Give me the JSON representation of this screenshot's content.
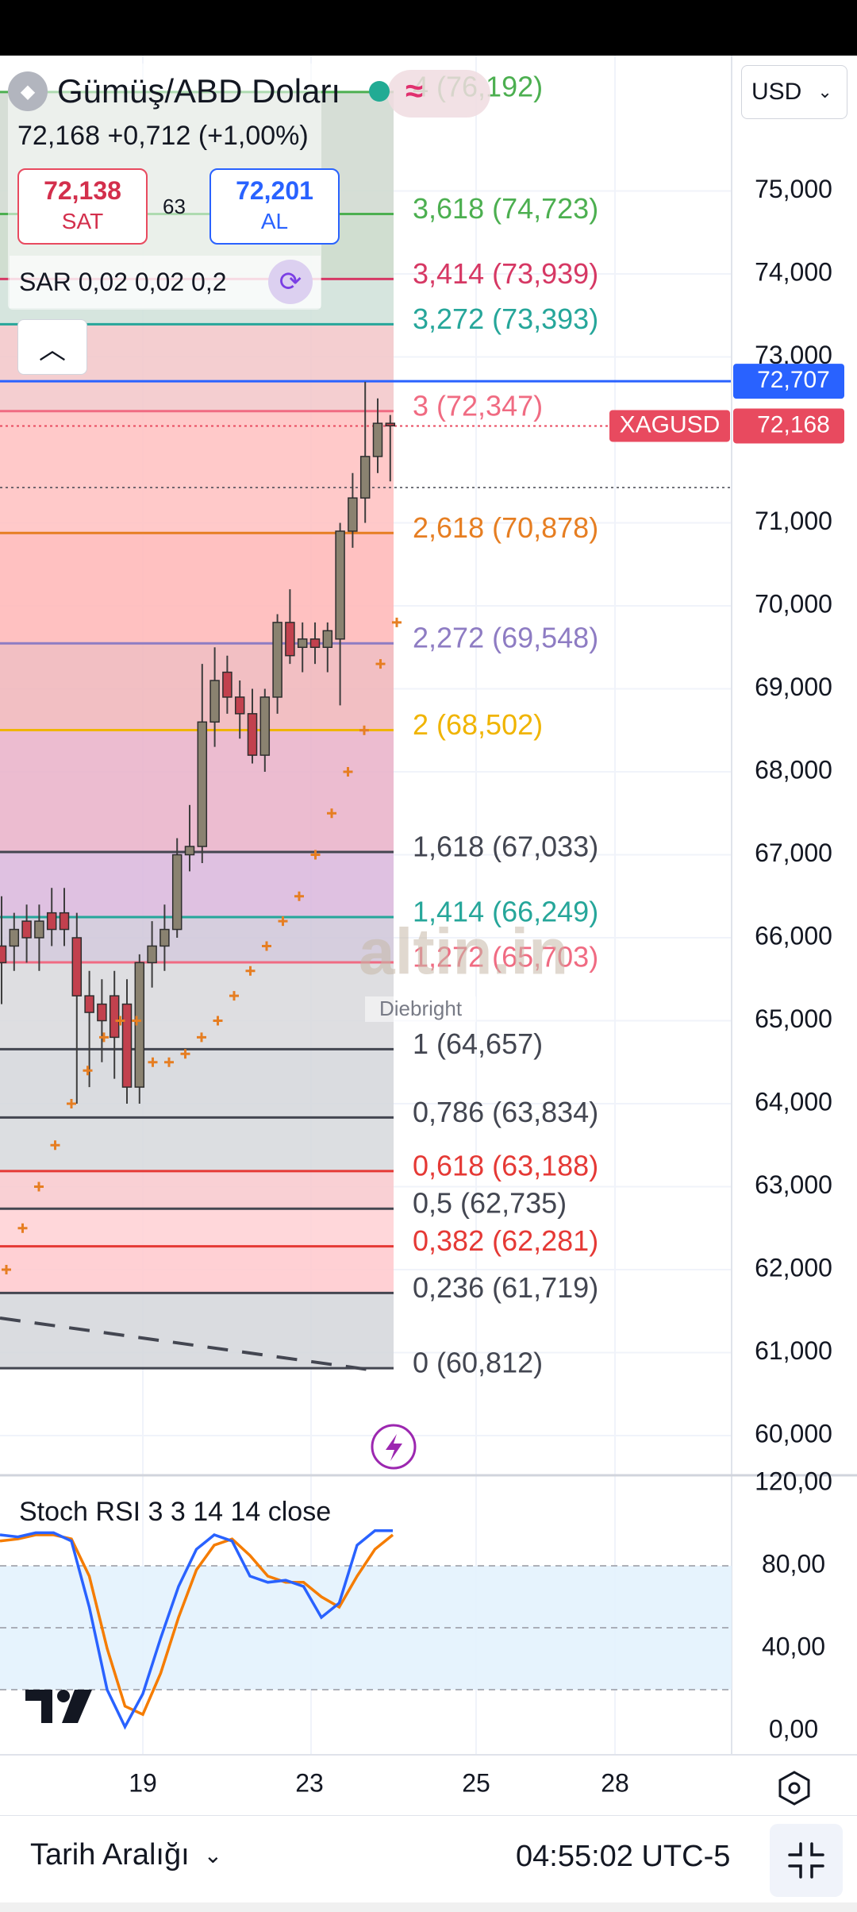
{
  "symbol": {
    "name": "Gümüş/ABD Doları",
    "price_change": "72,168  +0,712 (+1,00%)",
    "bid_value": "72,138",
    "bid_label": "SAT",
    "spread": "63",
    "ask_value": "72,201",
    "ask_label": "AL",
    "indicator": "SAR 0,02 0,02 0,2",
    "ticker_tag": "XAGUSD"
  },
  "currency_selector": {
    "label": "USD"
  },
  "fib_levels": [
    {
      "label": "4 (76,192)",
      "color": "#4caf50"
    },
    {
      "label": "3,618 (74,723)",
      "color": "#4caf50"
    },
    {
      "label": "3,414 (73,939)",
      "color": "#d63864"
    },
    {
      "label": "3,272 (73,393)",
      "color": "#26a69a"
    },
    {
      "label": "3 (72,347)",
      "color": "#f06b82"
    },
    {
      "label": "2,618 (70,878)",
      "color": "#e67e22"
    },
    {
      "label": "2,272 (69,548)",
      "color": "#8e7cc3"
    },
    {
      "label": "2 (68,502)",
      "color": "#f0b400"
    },
    {
      "label": "1,618 (67,033)",
      "color": "#434651"
    },
    {
      "label": "1,414 (66,249)",
      "color": "#26a69a"
    },
    {
      "label": "1,272 (65,703)",
      "color": "#f06b82"
    },
    {
      "label": "1 (64,657)",
      "color": "#434651"
    },
    {
      "label": "0,786 (63,834)",
      "color": "#434651"
    },
    {
      "label": "0,618 (63,188)",
      "color": "#e53935"
    },
    {
      "label": "0,5 (62,735)",
      "color": "#434651"
    },
    {
      "label": "0,382 (62,281)",
      "color": "#e53935"
    },
    {
      "label": "0,236 (61,719)",
      "color": "#434651"
    },
    {
      "label": "0 (60,812)",
      "color": "#434651"
    }
  ],
  "price_axis": {
    "ticks": [
      "75,000",
      "74,000",
      "73,000",
      "71,000",
      "70,000",
      "69,000",
      "68,000",
      "67,000",
      "66,000",
      "65,000",
      "64,000",
      "63,000",
      "62,000",
      "61,000",
      "60,000"
    ],
    "marker_blue": "72,707",
    "marker_red": "72,168"
  },
  "time_axis": {
    "ticks": [
      "19",
      "23",
      "25",
      "28"
    ]
  },
  "stoch": {
    "title": "Stoch RSI 3 3 14 14 close",
    "ticks": [
      "120,00",
      "80,00",
      "40,00",
      "0,00"
    ]
  },
  "watermark": {
    "text": "altin.in",
    "sub": "Diebright"
  },
  "bottom": {
    "range_label": "Tarih Aralığı",
    "time": "04:55:02 UTC-5"
  },
  "chart_data": {
    "type": "candlestick",
    "symbol": "XAGUSD",
    "ohlc": [
      {
        "o": 65.9,
        "h": 66.5,
        "l": 65.2,
        "c": 65.7
      },
      {
        "o": 65.9,
        "h": 66.3,
        "l": 65.6,
        "c": 66.1
      },
      {
        "o": 66.2,
        "h": 66.4,
        "l": 65.7,
        "c": 66.0
      },
      {
        "o": 66.0,
        "h": 66.4,
        "l": 65.6,
        "c": 66.2
      },
      {
        "o": 66.3,
        "h": 66.6,
        "l": 65.9,
        "c": 66.1
      },
      {
        "o": 66.3,
        "h": 66.6,
        "l": 65.9,
        "c": 66.1
      },
      {
        "o": 66.0,
        "h": 66.3,
        "l": 64.0,
        "c": 65.3
      },
      {
        "o": 65.3,
        "h": 65.6,
        "l": 64.2,
        "c": 65.1
      },
      {
        "o": 65.2,
        "h": 65.5,
        "l": 64.5,
        "c": 65.0
      },
      {
        "o": 65.3,
        "h": 65.6,
        "l": 64.3,
        "c": 64.8
      },
      {
        "o": 65.2,
        "h": 65.5,
        "l": 64.0,
        "c": 64.2
      },
      {
        "o": 64.2,
        "h": 65.8,
        "l": 64.0,
        "c": 65.7
      },
      {
        "o": 65.7,
        "h": 66.2,
        "l": 65.4,
        "c": 65.9
      },
      {
        "o": 65.9,
        "h": 66.4,
        "l": 65.6,
        "c": 66.1
      },
      {
        "o": 66.1,
        "h": 67.2,
        "l": 66.0,
        "c": 67.0
      },
      {
        "o": 67.0,
        "h": 67.6,
        "l": 66.8,
        "c": 67.1
      },
      {
        "o": 67.1,
        "h": 69.3,
        "l": 66.9,
        "c": 68.6
      },
      {
        "o": 68.6,
        "h": 69.5,
        "l": 68.3,
        "c": 69.1
      },
      {
        "o": 69.2,
        "h": 69.4,
        "l": 68.7,
        "c": 68.9
      },
      {
        "o": 68.9,
        "h": 69.1,
        "l": 68.4,
        "c": 68.7
      },
      {
        "o": 68.7,
        "h": 69.0,
        "l": 68.1,
        "c": 68.2
      },
      {
        "o": 68.2,
        "h": 69.0,
        "l": 68.0,
        "c": 68.9
      },
      {
        "o": 68.9,
        "h": 69.9,
        "l": 68.7,
        "c": 69.8
      },
      {
        "o": 69.8,
        "h": 70.2,
        "l": 69.3,
        "c": 69.4
      },
      {
        "o": 69.5,
        "h": 69.8,
        "l": 69.2,
        "c": 69.6
      },
      {
        "o": 69.6,
        "h": 69.8,
        "l": 69.3,
        "c": 69.5
      },
      {
        "o": 69.5,
        "h": 69.8,
        "l": 69.2,
        "c": 69.7
      },
      {
        "o": 69.6,
        "h": 71.0,
        "l": 68.8,
        "c": 70.9
      },
      {
        "o": 70.9,
        "h": 71.6,
        "l": 70.7,
        "c": 71.3
      },
      {
        "o": 71.3,
        "h": 72.7,
        "l": 71.0,
        "c": 71.8
      },
      {
        "o": 71.8,
        "h": 72.5,
        "l": 71.6,
        "c": 72.2
      },
      {
        "o": 72.2,
        "h": 72.3,
        "l": 71.5,
        "c": 72.17
      }
    ],
    "sar": [
      62.0,
      62.5,
      63.0,
      63.5,
      64.0,
      64.4,
      64.8,
      65.0,
      65.0,
      64.5,
      64.5,
      64.6,
      64.8,
      65.0,
      65.3,
      65.6,
      65.9,
      66.2,
      66.5,
      67.0,
      67.5,
      68.0,
      68.5,
      69.3,
      69.8
    ],
    "stoch_k": [
      95,
      94,
      96,
      96,
      92,
      60,
      20,
      2,
      18,
      45,
      70,
      88,
      95,
      92,
      75,
      72,
      73,
      70,
      55,
      62,
      90,
      97,
      97
    ],
    "stoch_d": [
      92,
      93,
      95,
      95,
      93,
      75,
      40,
      12,
      8,
      28,
      55,
      78,
      90,
      93,
      85,
      75,
      72,
      72,
      65,
      60,
      75,
      88,
      95
    ],
    "stoch_range": [
      0,
      120
    ],
    "price_range": [
      59.6,
      76.5
    ]
  }
}
